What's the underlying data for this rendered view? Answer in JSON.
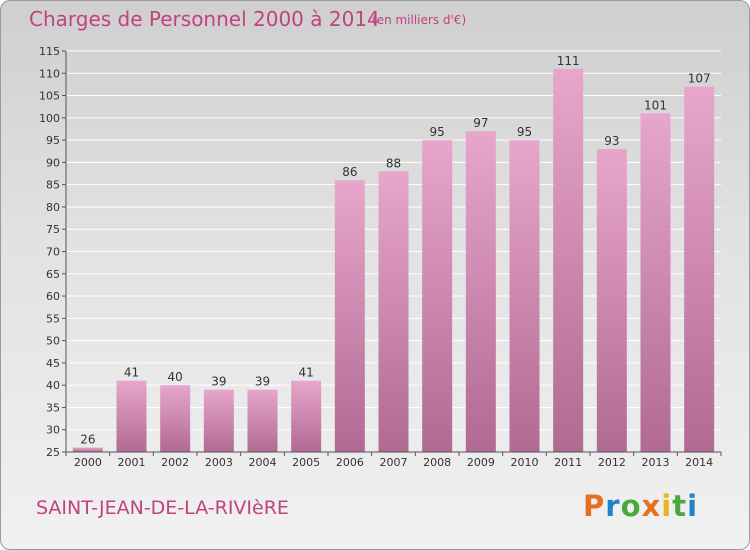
{
  "header": {
    "title": "Charges de Personnel 2000 à 2014",
    "subtitle": "(en milliers d'€)"
  },
  "footer": {
    "commune": "SAINT-JEAN-DE-LA-RIVIèRE",
    "logo_text": "Proxiti"
  },
  "chart_data": {
    "type": "bar",
    "title": "Charges de Personnel 2000 à 2014",
    "subtitle": "(en milliers d'€)",
    "xlabel": "",
    "ylabel": "",
    "categories": [
      "2000",
      "2001",
      "2002",
      "2003",
      "2004",
      "2005",
      "2006",
      "2007",
      "2008",
      "2009",
      "2010",
      "2011",
      "2012",
      "2013",
      "2014"
    ],
    "values": [
      26,
      41,
      40,
      39,
      39,
      41,
      86,
      88,
      95,
      97,
      95,
      111,
      93,
      101,
      107
    ],
    "ylim": [
      25,
      115
    ],
    "yticks": [
      25,
      30,
      35,
      40,
      45,
      50,
      55,
      60,
      65,
      70,
      75,
      80,
      85,
      90,
      95,
      100,
      105,
      110,
      115
    ],
    "grid": true,
    "data_labels": true,
    "colors": {
      "bar_top": "#e8a6cc",
      "bar_bottom": "#b06a93",
      "grid": "#ffffff",
      "text": "#c0437f"
    }
  }
}
